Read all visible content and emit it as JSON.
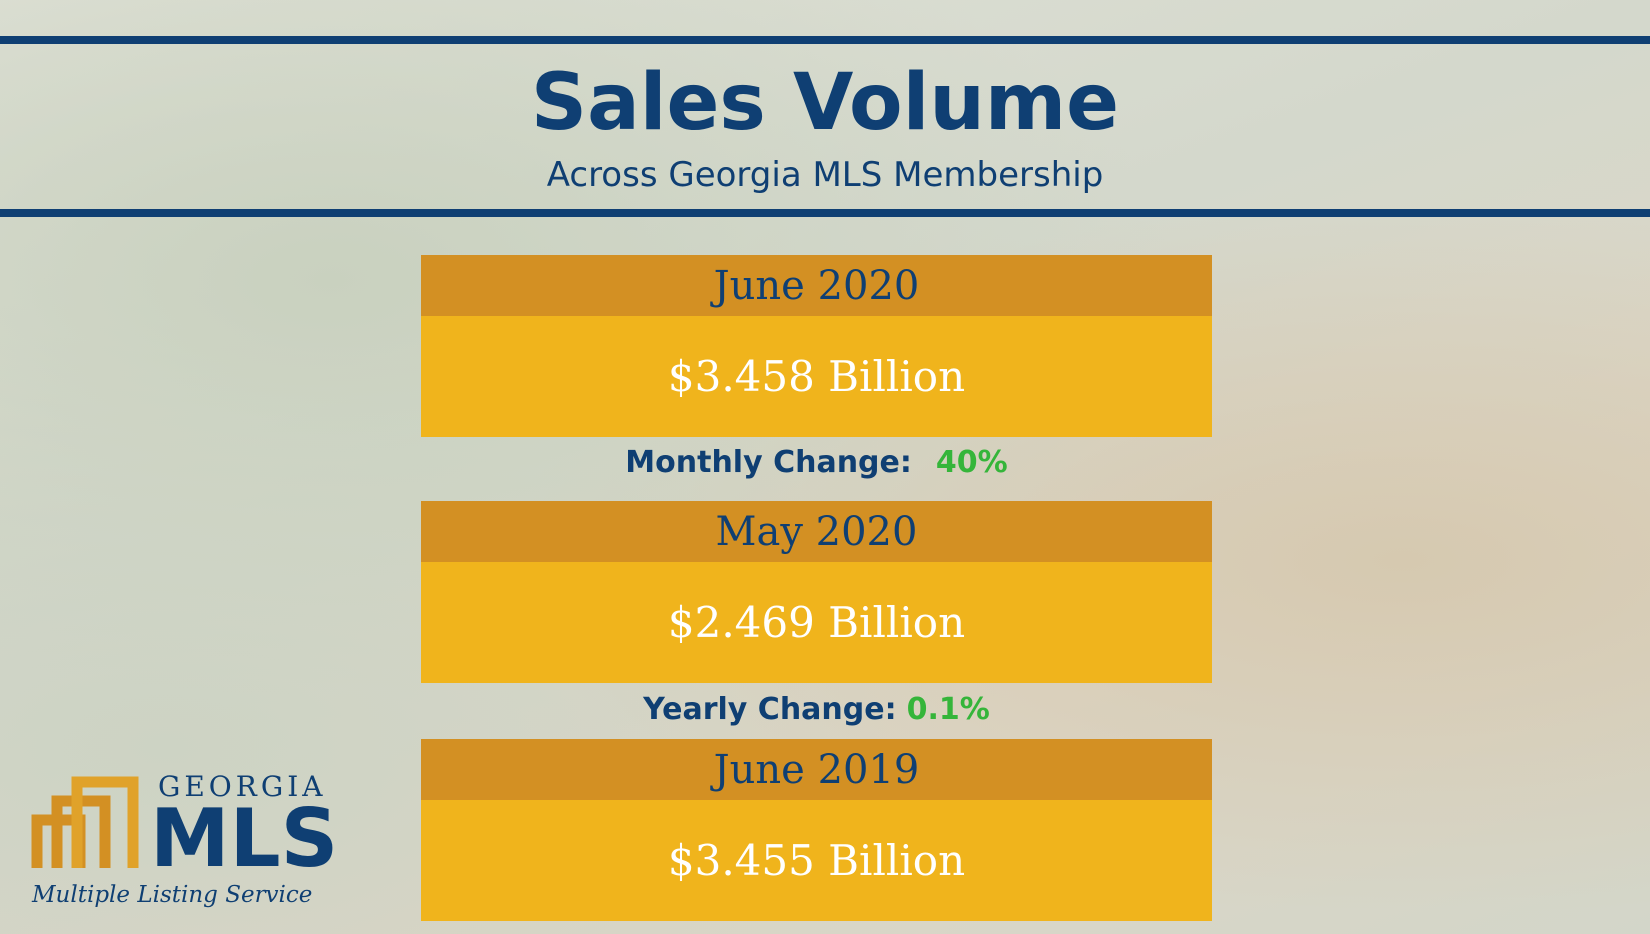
{
  "header": {
    "title": "Sales Volume",
    "subtitle": "Across Georgia MLS Membership"
  },
  "panels": [
    {
      "label": "June 2020",
      "value": "$3.458 Billion"
    },
    {
      "label": "May 2020",
      "value": "$2.469 Billion"
    },
    {
      "label": "June 2019",
      "value": "$3.455 Billion"
    }
  ],
  "changes": [
    {
      "label": "Monthly Change:",
      "value": "40%"
    },
    {
      "label": "Yearly Change:",
      "value": "0.1%"
    }
  ],
  "logo": {
    "brand": "GEORGIA",
    "name": "MLS",
    "tagline": "Multiple Listing Service"
  }
}
